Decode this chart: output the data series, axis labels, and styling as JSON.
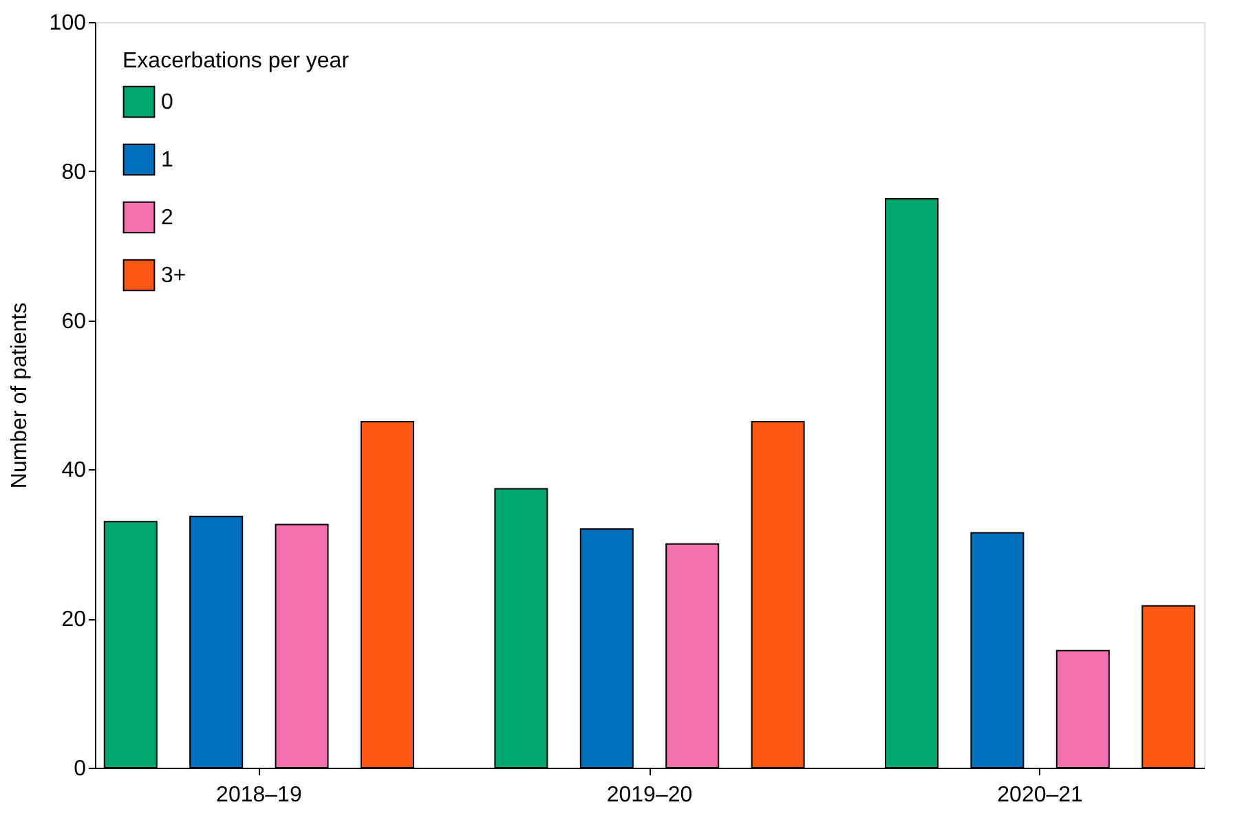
{
  "chart_data": {
    "type": "bar",
    "ylabel": "Number of patients",
    "legend_title": "Exacerbations per year",
    "categories": [
      "2018–19",
      "2019–20",
      "2020–21"
    ],
    "series": [
      {
        "name": "0",
        "color": "#00a870",
        "values": [
          33.0,
          37.4,
          76.3
        ]
      },
      {
        "name": "1",
        "color": "#0070bc",
        "values": [
          33.7,
          32.0,
          31.5
        ]
      },
      {
        "name": "2",
        "color": "#f470ae",
        "values": [
          32.6,
          30.0,
          15.7
        ]
      },
      {
        "name": "3+",
        "color": "#ff5714",
        "values": [
          46.4,
          46.4,
          21.7
        ]
      }
    ],
    "ylim": [
      0,
      100
    ],
    "yticks": [
      0,
      20,
      40,
      60,
      80,
      100
    ],
    "grid": false,
    "legend": "top left"
  }
}
